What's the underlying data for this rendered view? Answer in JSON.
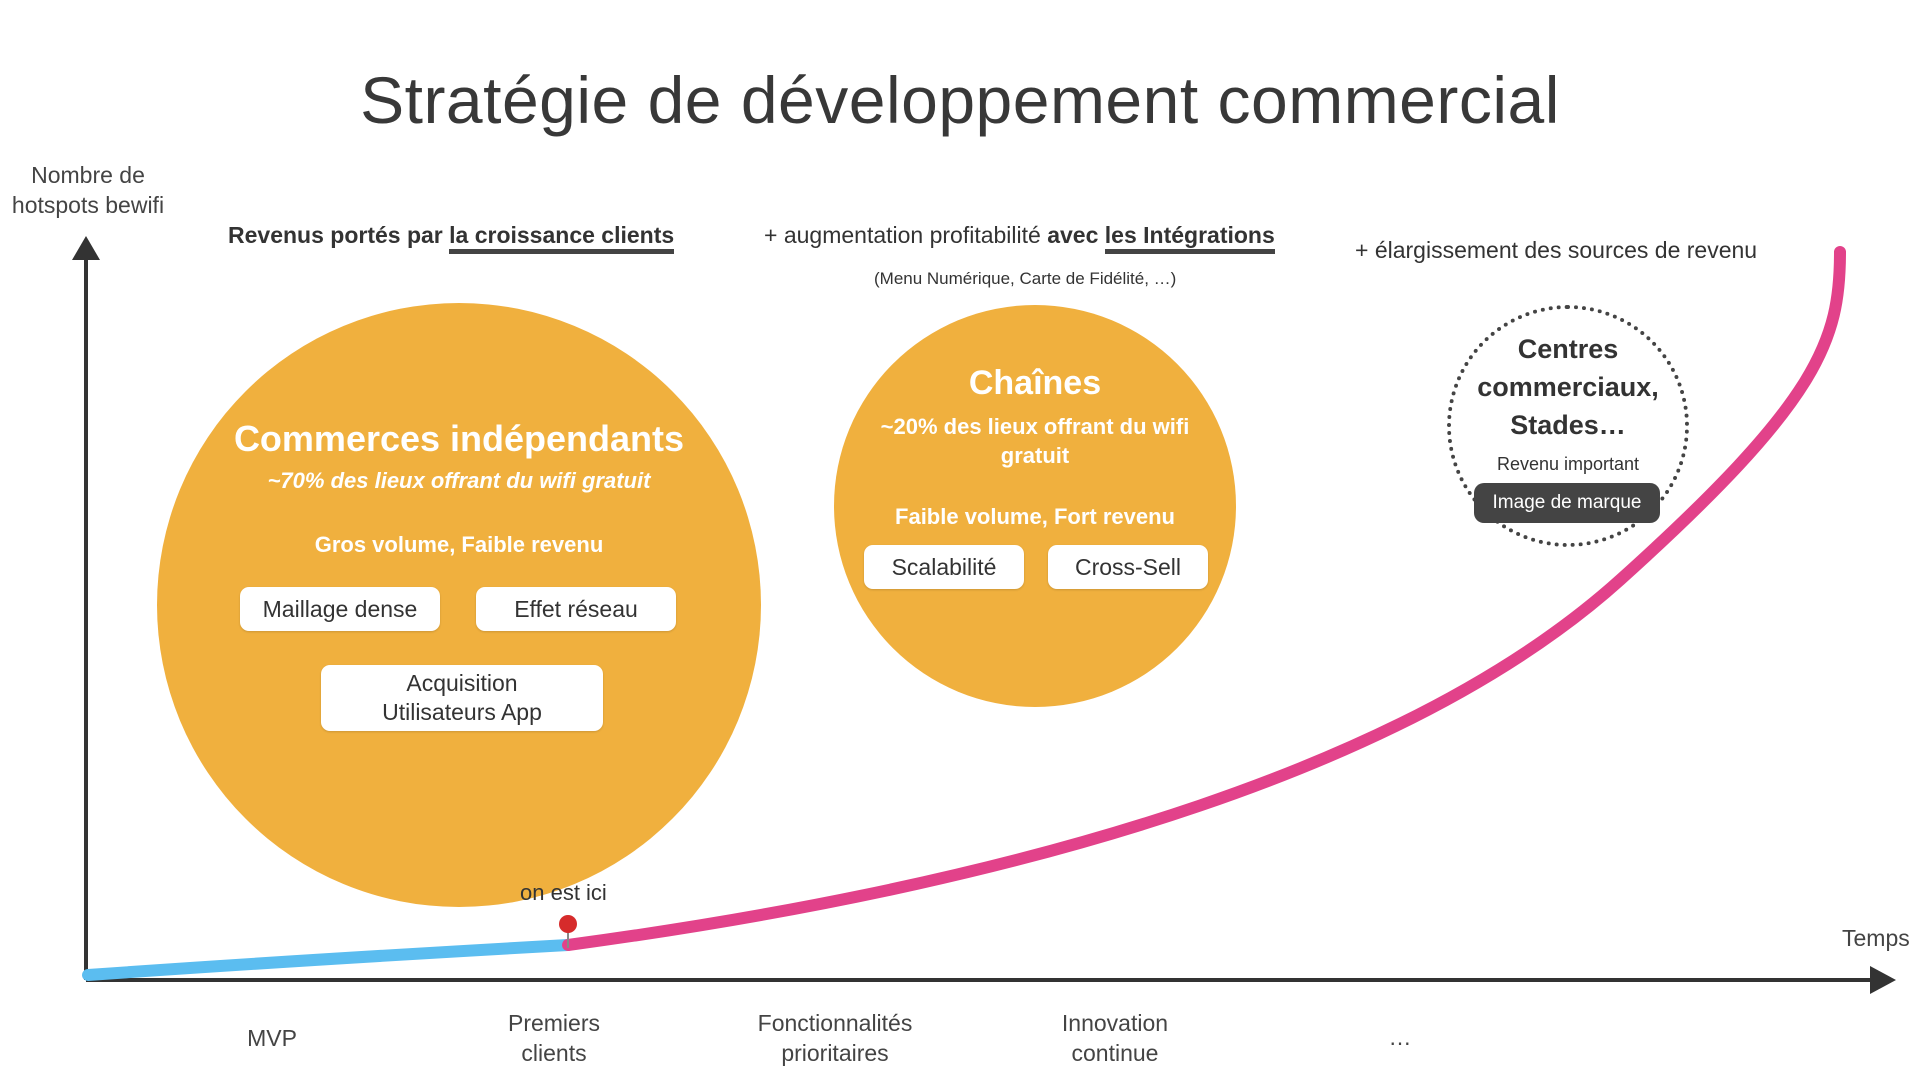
{
  "title": "Stratégie de développement commercial",
  "axes": {
    "y_label": "Nombre de hotspots bewifi",
    "x_label": "Temps"
  },
  "phases": [
    {
      "header_plain": "Revenus portés par ",
      "header_bold": "la croissance clients",
      "header_bold_prefix": "Revenus portés par"
    },
    {
      "header_plain": "+ augmentation profitabilité ",
      "header_bold_prefix": "avec",
      "header_bold": "les Intégrations",
      "note": "(Menu Numérique, Carte de Fidélité, …)"
    },
    {
      "header_plain": "+ élargissement des sources de revenu"
    }
  ],
  "circles": [
    {
      "title": "Commerces indépendants",
      "subtitle": "~70% des lieux offrant du wifi gratuit",
      "volume": "Gros volume, Faible revenu",
      "tags": [
        "Maillage dense",
        "Effet réseau",
        "Acquisition Utilisateurs App"
      ]
    },
    {
      "title": "Chaînes",
      "subtitle": "~20% des lieux offrant du wifi gratuit",
      "volume": "Faible volume, Fort revenu",
      "tags": [
        "Scalabilité",
        "Cross-Sell"
      ]
    },
    {
      "title": "Centres commerciaux, Stades…",
      "subtitle": "Revenu important",
      "badge": "Image de marque"
    }
  ],
  "marker_label": "on est ici",
  "milestones": [
    "MVP",
    "Premiers clients",
    "Fonctionnalités prioritaires",
    "Innovation continue",
    "…"
  ],
  "colors": {
    "circle": "#f0b03e",
    "curve_past": "#5bbdf0",
    "curve_future": "#e2428a",
    "axis": "#333333",
    "marker": "#d62b2b"
  }
}
